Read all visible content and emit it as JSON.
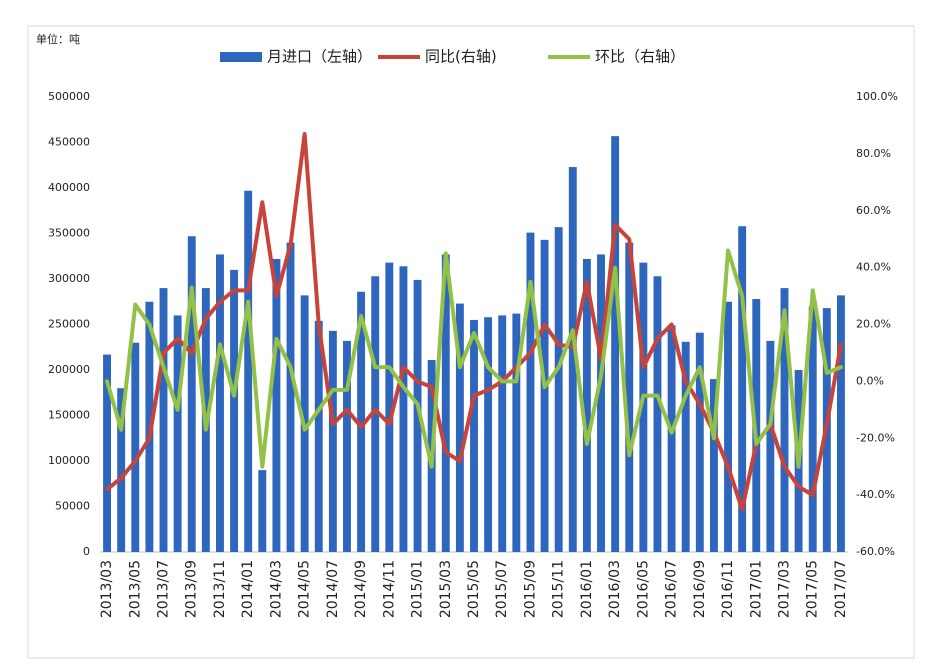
{
  "chart_data": {
    "type": "bar_line",
    "unit_label": "单位：吨",
    "categories": [
      "2013/03",
      null,
      "2013/05",
      null,
      "2013/07",
      null,
      "2013/09",
      null,
      "2013/11",
      null,
      "2014/01",
      null,
      "2014/03",
      null,
      "2014/05",
      null,
      "2014/07",
      null,
      "2014/09",
      null,
      "2014/11",
      null,
      "2015/01",
      null,
      "2015/03",
      null,
      "2015/05",
      null,
      "2015/07",
      null,
      "2015/09",
      null,
      "2015/11",
      null,
      "2016/01",
      null,
      "2016/03",
      null,
      "2016/05",
      null,
      "2016/07",
      null,
      "2016/09",
      null,
      "2016/11",
      null,
      "2017/01",
      null,
      "2017/03",
      null,
      "2017/05",
      null,
      "2017/07"
    ],
    "series": [
      {
        "name": "月进口（左轴）",
        "color": "#2f66bd",
        "kind": "bar",
        "axis": "y",
        "values": [
          217000,
          180000,
          230000,
          275000,
          290000,
          260000,
          347000,
          290000,
          327000,
          310000,
          397000,
          90000,
          322000,
          340000,
          282000,
          254000,
          243000,
          232000,
          286000,
          303000,
          318000,
          314000,
          299000,
          211000,
          327000,
          273000,
          255000,
          258000,
          260000,
          262000,
          351000,
          343000,
          357000,
          423000,
          322000,
          327000,
          457000,
          340000,
          318000,
          303000,
          249000,
          231000,
          241000,
          190000,
          275000,
          358000,
          278000,
          232000,
          290000,
          200000,
          270000,
          268000,
          282000
        ]
      },
      {
        "name": "同比(右轴)",
        "color": "#c8433a",
        "kind": "line",
        "axis": "y2",
        "values": [
          -38,
          -34,
          -28,
          -20,
          10,
          15,
          10,
          22,
          28,
          32,
          32,
          63,
          30,
          48,
          87,
          20,
          -15,
          -10,
          -16,
          -10,
          -15,
          5,
          0,
          -2,
          -25,
          -28,
          -5,
          -3,
          0,
          5,
          10,
          20,
          13,
          12,
          35,
          8,
          55,
          50,
          5,
          15,
          20,
          0,
          -8,
          -18,
          -30,
          -45,
          -22,
          -15,
          -30,
          -37,
          -40,
          -15,
          13
        ]
      },
      {
        "name": "环比（右轴）",
        "color": "#93c047",
        "kind": "line",
        "axis": "y2",
        "values": [
          0,
          -17,
          27,
          20,
          5,
          -10,
          33,
          -17,
          13,
          -5,
          28,
          -30,
          15,
          5,
          -17,
          -10,
          -3,
          -3,
          23,
          5,
          5,
          -2,
          -8,
          -30,
          45,
          5,
          17,
          5,
          0,
          0,
          35,
          -2,
          5,
          18,
          -22,
          2,
          40,
          -26,
          -5,
          -5,
          -18,
          -5,
          5,
          -20,
          46,
          30,
          -22,
          -15,
          25,
          -30,
          32,
          3,
          5
        ]
      }
    ],
    "ylim": [
      0,
      500000
    ],
    "yticks": [
      0,
      50000,
      100000,
      150000,
      200000,
      250000,
      300000,
      350000,
      400000,
      450000,
      500000
    ],
    "y2lim": [
      -60,
      100
    ],
    "y2ticks": [
      {
        "value": -60,
        "label": "-60.0%"
      },
      {
        "value": -40,
        "label": "-40.0%"
      },
      {
        "value": -20,
        "label": "-20.0%"
      },
      {
        "value": 0,
        "label": "0.0%"
      },
      {
        "value": 20,
        "label": "20.0%"
      },
      {
        "value": 40,
        "label": "40.0%"
      },
      {
        "value": 60,
        "label": "60.0%"
      },
      {
        "value": 80,
        "label": "80.0%"
      },
      {
        "value": 100,
        "label": "100.0%"
      }
    ],
    "legend": "top"
  }
}
